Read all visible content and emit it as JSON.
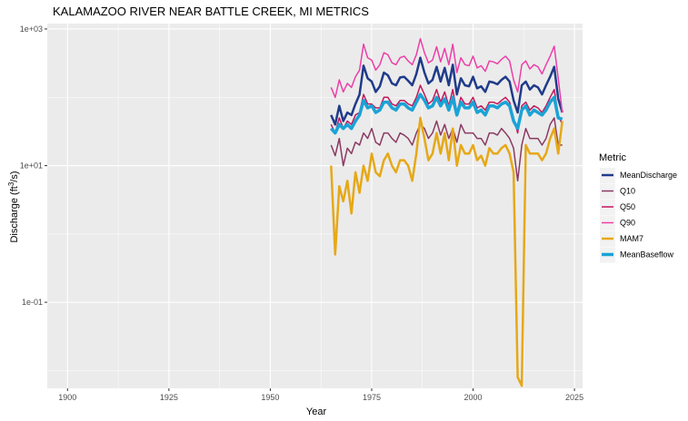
{
  "chart_data": {
    "type": "line",
    "title": "KALAMAZOO RIVER NEAR BATTLE CREEK, MI  METRICS",
    "xlabel": "Year",
    "ylabel": "Discharge (ft³/s)",
    "ylabel_parts": {
      "pre": "Discharge (ft",
      "sup": "3",
      "post": "/s)"
    },
    "x_scale": "linear",
    "y_scale": "log10",
    "xlim": [
      1895,
      2027
    ],
    "ylim": [
      0.0055,
      1200
    ],
    "x_ticks": [
      1900,
      1925,
      1950,
      1975,
      2000,
      2025
    ],
    "x_tick_labels": [
      "1900",
      "1925",
      "1950",
      "1975",
      "2000",
      "2025"
    ],
    "y_ticks": [
      0.1,
      10,
      1000
    ],
    "y_tick_labels": [
      "1e-01",
      "1e+01",
      "1e+03"
    ],
    "grid": true,
    "legend": {
      "title": "Metric",
      "position": "right"
    },
    "years": [
      1965,
      1966,
      1967,
      1968,
      1969,
      1970,
      1971,
      1972,
      1973,
      1974,
      1975,
      1976,
      1977,
      1978,
      1979,
      1980,
      1981,
      1982,
      1983,
      1984,
      1985,
      1986,
      1987,
      1988,
      1989,
      1990,
      1991,
      1992,
      1993,
      1994,
      1995,
      1996,
      1997,
      1998,
      1999,
      2000,
      2001,
      2002,
      2003,
      2004,
      2005,
      2006,
      2007,
      2008,
      2009,
      2010,
      2011,
      2012,
      2013,
      2014,
      2015,
      2016,
      2017,
      2018,
      2019,
      2020,
      2021,
      2022
    ],
    "series": [
      {
        "name": "MeanDischarge",
        "color": "#1f3b8a",
        "width": 2.5,
        "values": [
          55,
          40,
          75,
          45,
          60,
          55,
          80,
          110,
          290,
          190,
          170,
          120,
          145,
          230,
          210,
          160,
          150,
          195,
          200,
          175,
          150,
          220,
          380,
          230,
          160,
          180,
          280,
          170,
          270,
          150,
          300,
          110,
          190,
          150,
          145,
          200,
          135,
          145,
          120,
          170,
          165,
          155,
          180,
          200,
          170,
          90,
          60,
          150,
          170,
          130,
          150,
          140,
          110,
          150,
          200,
          280,
          95,
          60
        ]
      },
      {
        "name": "Q10",
        "color": "#8b3a62",
        "width": 1.5,
        "values": [
          20,
          14,
          25,
          10,
          18,
          15,
          22,
          20,
          30,
          25,
          35,
          22,
          20,
          30,
          30,
          25,
          22,
          30,
          28,
          25,
          20,
          30,
          40,
          35,
          25,
          30,
          45,
          28,
          40,
          25,
          35,
          22,
          40,
          30,
          30,
          30,
          25,
          25,
          20,
          30,
          30,
          28,
          35,
          30,
          25,
          18,
          6,
          20,
          35,
          25,
          25,
          25,
          20,
          25,
          40,
          50,
          20,
          20
        ]
      },
      {
        "name": "Q50",
        "color": "#c2185b",
        "width": 1.5,
        "values": [
          40,
          30,
          50,
          35,
          45,
          40,
          55,
          60,
          110,
          80,
          80,
          70,
          70,
          100,
          100,
          80,
          75,
          90,
          90,
          80,
          75,
          100,
          150,
          110,
          80,
          90,
          130,
          85,
          120,
          75,
          130,
          60,
          100,
          80,
          80,
          100,
          70,
          75,
          65,
          85,
          85,
          80,
          90,
          100,
          85,
          50,
          30,
          75,
          85,
          65,
          75,
          70,
          60,
          75,
          100,
          130,
          55,
          40
        ]
      },
      {
        "name": "Q90",
        "color": "#ec3fa8",
        "width": 1.5,
        "values": [
          140,
          100,
          180,
          120,
          160,
          140,
          200,
          250,
          600,
          380,
          350,
          250,
          300,
          450,
          420,
          320,
          300,
          380,
          400,
          340,
          300,
          420,
          720,
          450,
          320,
          350,
          550,
          330,
          520,
          300,
          600,
          230,
          380,
          300,
          290,
          400,
          270,
          290,
          240,
          340,
          330,
          310,
          360,
          400,
          340,
          180,
          120,
          300,
          340,
          260,
          300,
          280,
          220,
          300,
          400,
          560,
          190,
          60
        ]
      },
      {
        "name": "MAM7",
        "color": "#e6a817",
        "width": 2.5,
        "values": [
          10,
          0.5,
          5,
          3,
          6,
          2,
          8,
          4,
          10,
          6,
          15,
          8,
          7,
          12,
          15,
          10,
          8,
          12,
          12,
          10,
          6,
          15,
          50,
          25,
          12,
          15,
          30,
          15,
          30,
          12,
          35,
          10,
          20,
          15,
          15,
          20,
          12,
          14,
          10,
          18,
          15,
          15,
          18,
          20,
          15,
          8,
          0.008,
          0.006,
          20,
          15,
          15,
          15,
          12,
          15,
          25,
          35,
          15,
          45
        ]
      },
      {
        "name": "MeanBaseflow",
        "color": "#1aa3d6",
        "width": 3.5,
        "values": [
          35,
          30,
          40,
          35,
          40,
          35,
          45,
          55,
          90,
          70,
          75,
          60,
          65,
          85,
          85,
          70,
          65,
          80,
          80,
          70,
          65,
          85,
          110,
          90,
          70,
          75,
          100,
          75,
          95,
          65,
          100,
          55,
          85,
          70,
          70,
          85,
          60,
          65,
          55,
          75,
          75,
          70,
          80,
          85,
          75,
          45,
          35,
          65,
          75,
          55,
          65,
          60,
          55,
          65,
          85,
          100,
          50,
          48
        ]
      }
    ]
  }
}
